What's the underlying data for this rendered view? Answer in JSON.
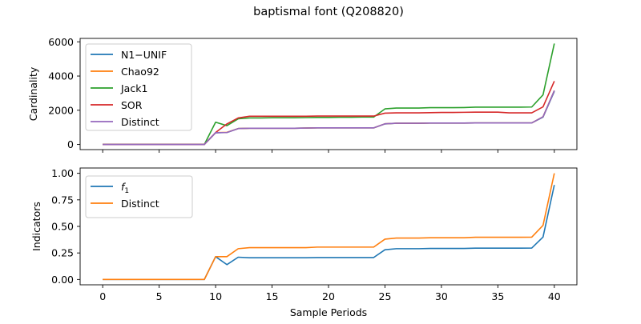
{
  "suptitle": "baptismal font (Q208820)",
  "chart_data": [
    {
      "type": "line",
      "ylabel": "Cardinality",
      "xlim": [
        -2,
        42
      ],
      "ylim": [
        -300,
        6200
      ],
      "xticks": [
        0,
        5,
        10,
        15,
        20,
        25,
        30,
        35,
        40
      ],
      "yticks": [
        0,
        2000,
        4000,
        6000
      ],
      "ytick_labels": [
        "0",
        "2000",
        "4000",
        "6000"
      ],
      "grid": false,
      "legend_position": "upper-left",
      "x": [
        0,
        1,
        2,
        3,
        4,
        5,
        6,
        7,
        8,
        9,
        10,
        11,
        12,
        13,
        14,
        15,
        16,
        17,
        18,
        19,
        20,
        21,
        22,
        23,
        24,
        25,
        26,
        27,
        28,
        29,
        30,
        31,
        32,
        33,
        34,
        35,
        36,
        37,
        38,
        39,
        40
      ],
      "series": [
        {
          "name": "N1−UNIF",
          "color": "#1f77b4",
          "values": [
            0,
            0,
            0,
            0,
            0,
            0,
            0,
            0,
            0,
            0,
            680,
            700,
            930,
            950,
            950,
            950,
            950,
            950,
            960,
            970,
            970,
            970,
            970,
            970,
            970,
            1200,
            1240,
            1240,
            1240,
            1250,
            1250,
            1250,
            1250,
            1260,
            1260,
            1260,
            1260,
            1260,
            1260,
            1600,
            3100
          ]
        },
        {
          "name": "Chao92",
          "color": "#ff7f0e",
          "values": [
            0,
            0,
            0,
            0,
            0,
            0,
            0,
            0,
            0,
            0,
            690,
            710,
            930,
            950,
            950,
            950,
            950,
            950,
            960,
            970,
            970,
            970,
            970,
            970,
            970,
            1210,
            1240,
            1240,
            1240,
            1250,
            1250,
            1250,
            1250,
            1260,
            1260,
            1260,
            1260,
            1260,
            1260,
            1620,
            3150
          ]
        },
        {
          "name": "Jack1",
          "color": "#2ca02c",
          "values": [
            0,
            0,
            0,
            0,
            0,
            0,
            0,
            0,
            0,
            0,
            1300,
            1100,
            1500,
            1550,
            1550,
            1560,
            1560,
            1560,
            1570,
            1580,
            1580,
            1590,
            1590,
            1600,
            1600,
            2080,
            2130,
            2130,
            2130,
            2150,
            2150,
            2150,
            2160,
            2180,
            2180,
            2180,
            2180,
            2180,
            2190,
            2900,
            5900
          ]
        },
        {
          "name": "SOR",
          "color": "#d62728",
          "values": [
            0,
            0,
            0,
            0,
            0,
            0,
            0,
            0,
            0,
            0,
            700,
            1200,
            1550,
            1650,
            1650,
            1650,
            1650,
            1650,
            1650,
            1660,
            1660,
            1660,
            1660,
            1660,
            1660,
            1830,
            1850,
            1850,
            1850,
            1860,
            1870,
            1870,
            1880,
            1890,
            1890,
            1890,
            1850,
            1850,
            1850,
            2200,
            3700
          ]
        },
        {
          "name": "Distinct",
          "color": "#9467bd",
          "values": [
            0,
            0,
            0,
            0,
            0,
            0,
            0,
            0,
            0,
            0,
            690,
            700,
            930,
            950,
            950,
            950,
            950,
            950,
            960,
            970,
            970,
            970,
            970,
            970,
            970,
            1210,
            1240,
            1240,
            1240,
            1250,
            1250,
            1250,
            1250,
            1260,
            1260,
            1260,
            1260,
            1260,
            1260,
            1620,
            3150
          ]
        }
      ]
    },
    {
      "type": "line",
      "ylabel": "Indicators",
      "xlabel": "Sample Periods",
      "xlim": [
        -2,
        42
      ],
      "ylim": [
        -0.05,
        1.05
      ],
      "xticks": [
        0,
        5,
        10,
        15,
        20,
        25,
        30,
        35,
        40
      ],
      "yticks": [
        0,
        0.25,
        0.5,
        0.75,
        1.0
      ],
      "ytick_labels": [
        "0.00",
        "0.25",
        "0.50",
        "0.75",
        "1.00"
      ],
      "grid": false,
      "legend_position": "upper-left",
      "x": [
        0,
        1,
        2,
        3,
        4,
        5,
        6,
        7,
        8,
        9,
        10,
        11,
        12,
        13,
        14,
        15,
        16,
        17,
        18,
        19,
        20,
        21,
        22,
        23,
        24,
        25,
        26,
        27,
        28,
        29,
        30,
        31,
        32,
        33,
        34,
        35,
        36,
        37,
        38,
        39,
        40
      ],
      "series": [
        {
          "name": "f1",
          "legend_main": "f",
          "legend_sub": "1",
          "color": "#1f77b4",
          "values": [
            0,
            0,
            0,
            0,
            0,
            0,
            0,
            0,
            0,
            0,
            0.215,
            0.14,
            0.21,
            0.205,
            0.205,
            0.205,
            0.205,
            0.205,
            0.205,
            0.207,
            0.207,
            0.207,
            0.207,
            0.207,
            0.207,
            0.28,
            0.29,
            0.29,
            0.29,
            0.292,
            0.292,
            0.292,
            0.292,
            0.295,
            0.295,
            0.295,
            0.295,
            0.295,
            0.296,
            0.4,
            0.89
          ]
        },
        {
          "name": "Distinct",
          "color": "#ff7f0e",
          "values": [
            0,
            0,
            0,
            0,
            0,
            0,
            0,
            0,
            0,
            0,
            0.215,
            0.215,
            0.29,
            0.3,
            0.3,
            0.3,
            0.3,
            0.3,
            0.3,
            0.305,
            0.305,
            0.305,
            0.305,
            0.305,
            0.305,
            0.38,
            0.39,
            0.39,
            0.39,
            0.393,
            0.393,
            0.393,
            0.393,
            0.398,
            0.398,
            0.398,
            0.398,
            0.398,
            0.399,
            0.51,
            1.0
          ]
        }
      ]
    }
  ]
}
